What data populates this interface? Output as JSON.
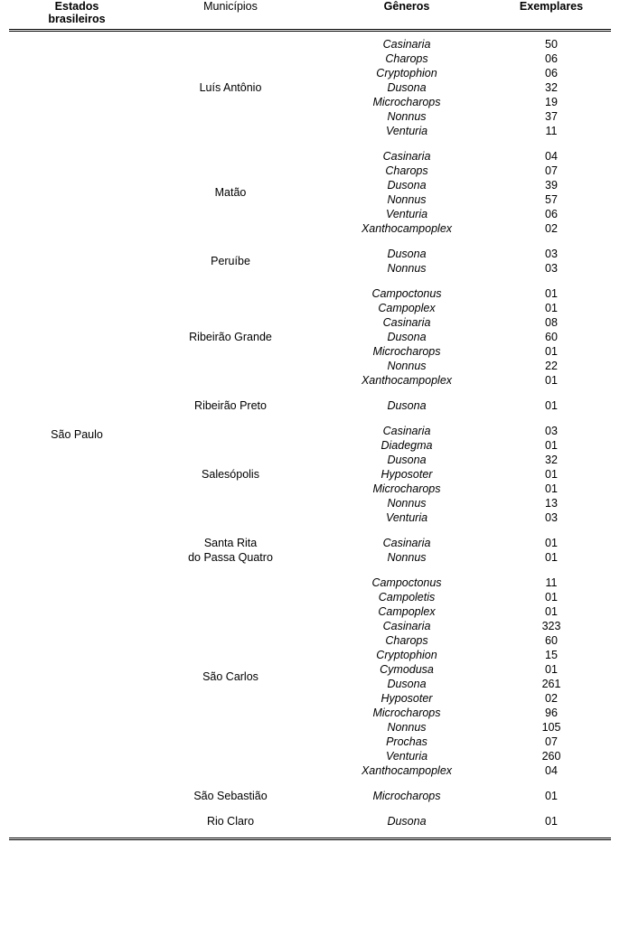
{
  "headers": {
    "col_a_line1": "Estados",
    "col_a_line2": "brasileiros",
    "col_b": "Municípios",
    "col_c": "Gêneros",
    "col_d": "Exemplares"
  },
  "state": "São Paulo",
  "groups": [
    {
      "municipio": [
        "Luís Antônio"
      ],
      "rows": [
        {
          "g": "Casinaria",
          "n": "50"
        },
        {
          "g": "Charops",
          "n": "06"
        },
        {
          "g": "Cryptophion",
          "n": "06"
        },
        {
          "g": "Dusona",
          "n": "32"
        },
        {
          "g": "Microcharops",
          "n": "19"
        },
        {
          "g": "Nonnus",
          "n": "37"
        },
        {
          "g": "Venturia",
          "n": "11"
        }
      ]
    },
    {
      "municipio": [
        "Matão"
      ],
      "rows": [
        {
          "g": "Casinaria",
          "n": "04"
        },
        {
          "g": "Charops",
          "n": "07"
        },
        {
          "g": "Dusona",
          "n": "39"
        },
        {
          "g": "Nonnus",
          "n": "57"
        },
        {
          "g": "Venturia",
          "n": "06"
        },
        {
          "g": "Xanthocampoplex",
          "n": "02"
        }
      ]
    },
    {
      "municipio": [
        "Peruíbe"
      ],
      "rows": [
        {
          "g": "Dusona",
          "n": "03"
        },
        {
          "g": "Nonnus",
          "n": "03"
        }
      ]
    },
    {
      "municipio": [
        "Ribeirão Grande"
      ],
      "rows": [
        {
          "g": "Campoctonus",
          "n": "01"
        },
        {
          "g": "Campoplex",
          "n": "01"
        },
        {
          "g": "Casinaria",
          "n": "08"
        },
        {
          "g": "Dusona",
          "n": "60"
        },
        {
          "g": "Microcharops",
          "n": "01"
        },
        {
          "g": "Nonnus",
          "n": "22"
        },
        {
          "g": "Xanthocampoplex",
          "n": "01"
        }
      ]
    },
    {
      "municipio": [
        "Ribeirão Preto"
      ],
      "rows": [
        {
          "g": "Dusona",
          "n": "01"
        }
      ]
    },
    {
      "municipio": [
        "Salesópolis"
      ],
      "rows": [
        {
          "g": "Casinaria",
          "n": "03"
        },
        {
          "g": "Diadegma",
          "n": "01"
        },
        {
          "g": "Dusona",
          "n": "32"
        },
        {
          "g": "Hyposoter",
          "n": "01"
        },
        {
          "g": "Microcharops",
          "n": "01"
        },
        {
          "g": "Nonnus",
          "n": "13"
        },
        {
          "g": "Venturia",
          "n": "03"
        }
      ]
    },
    {
      "municipio": [
        "Santa Rita",
        "do Passa Quatro"
      ],
      "rows": [
        {
          "g": "Casinaria",
          "n": "01"
        },
        {
          "g": "Nonnus",
          "n": "01"
        }
      ]
    },
    {
      "municipio": [
        "São Carlos"
      ],
      "rows": [
        {
          "g": "Campoctonus",
          "n": "11"
        },
        {
          "g": "Campoletis",
          "n": "01"
        },
        {
          "g": "Campoplex",
          "n": "01"
        },
        {
          "g": "Casinaria",
          "n": "323"
        },
        {
          "g": "Charops",
          "n": "60"
        },
        {
          "g": "Cryptophion",
          "n": "15"
        },
        {
          "g": "Cymodusa",
          "n": "01"
        },
        {
          "g": "Dusona",
          "n": "261"
        },
        {
          "g": "Hyposoter",
          "n": "02"
        },
        {
          "g": "Microcharops",
          "n": "96"
        },
        {
          "g": "Nonnus",
          "n": "105"
        },
        {
          "g": "Prochas",
          "n": "07"
        },
        {
          "g": "Venturia",
          "n": "260"
        },
        {
          "g": "Xanthocampoplex",
          "n": "04"
        }
      ]
    },
    {
      "municipio": [
        "São Sebastião"
      ],
      "rows": [
        {
          "g": "Microcharops",
          "n": "01"
        }
      ]
    },
    {
      "municipio": [
        "Rio Claro"
      ],
      "rows": [
        {
          "g": "Dusona",
          "n": "01"
        }
      ]
    }
  ]
}
